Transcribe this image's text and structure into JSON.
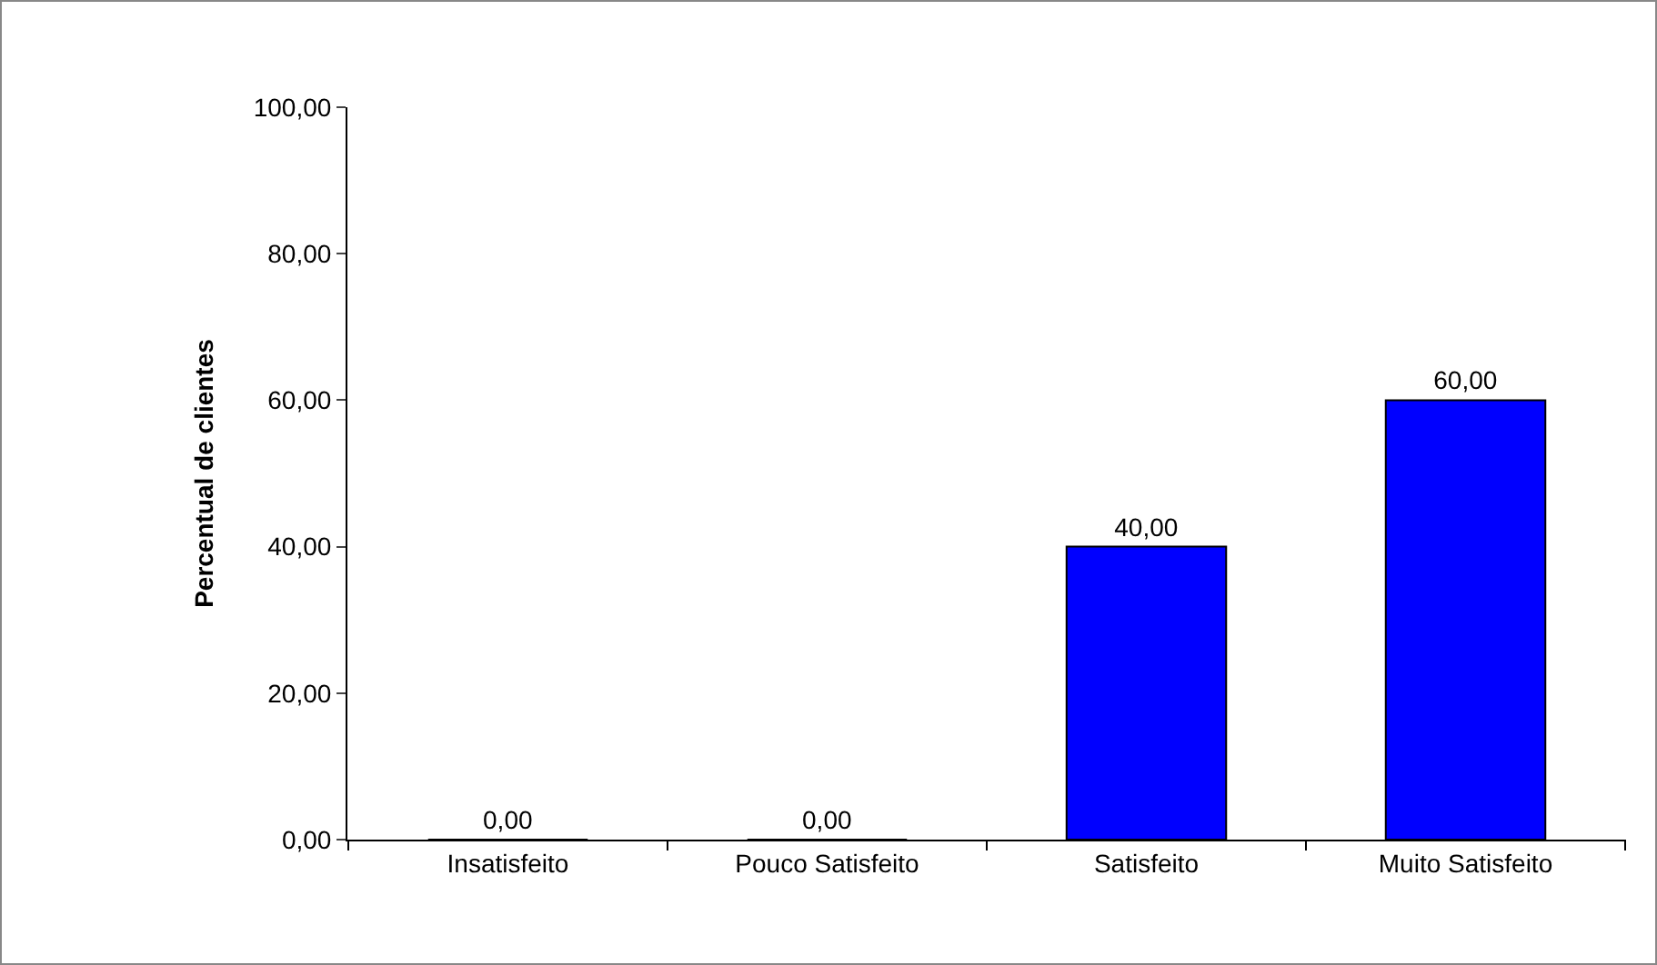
{
  "chart_data": {
    "type": "bar",
    "ylabel": "Percentual de clientes",
    "categories": [
      "Insatisfeito",
      "Pouco Satisfeito",
      "Satisfeito",
      "Muito Satisfeito"
    ],
    "values": [
      0,
      0,
      40,
      60
    ],
    "value_labels": [
      "0,00",
      "0,00",
      "40,00",
      "60,00"
    ],
    "color": "#0000ff",
    "ylim": [
      0,
      100
    ],
    "yticks": [
      {
        "value": 0,
        "label": "0,00"
      },
      {
        "value": 20,
        "label": "20,00"
      },
      {
        "value": 40,
        "label": "40,00"
      },
      {
        "value": 60,
        "label": "60,00"
      },
      {
        "value": 80,
        "label": "80,00"
      },
      {
        "value": 100,
        "label": "100,00"
      }
    ],
    "grid": false,
    "legend": false
  }
}
